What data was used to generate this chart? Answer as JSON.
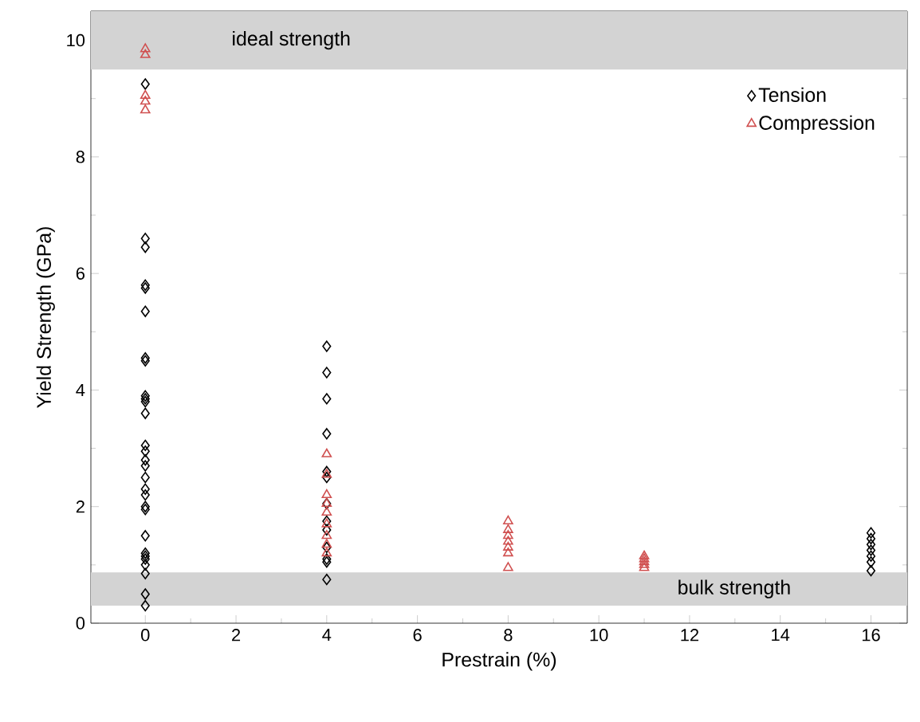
{
  "chart_data": {
    "type": "scatter",
    "xlabel": "Prestrain (%)",
    "ylabel": "Yield Strength (GPa)",
    "xlim": [
      -1.2,
      16.8
    ],
    "ylim": [
      0,
      10.5
    ],
    "xticks": [
      0,
      2,
      4,
      6,
      8,
      10,
      12,
      14,
      16
    ],
    "yticks": [
      0,
      2,
      4,
      6,
      8,
      10
    ],
    "legend": "top right",
    "series": [
      {
        "name": "Tension",
        "color": "#000000",
        "marker": "diamond",
        "x": [
          0,
          0,
          0,
          0,
          0,
          0,
          0,
          0,
          0,
          0,
          0,
          0,
          0,
          0,
          0,
          0,
          0,
          0,
          0,
          0,
          0,
          0,
          0,
          0,
          0,
          0,
          0,
          0,
          0,
          4,
          4,
          4,
          4,
          4,
          4,
          4,
          4,
          4,
          4,
          4,
          4,
          4,
          16,
          16,
          16,
          16,
          16,
          16,
          16
        ],
        "values": [
          9.25,
          6.6,
          6.45,
          5.8,
          5.75,
          5.35,
          4.55,
          4.5,
          3.9,
          3.85,
          3.8,
          3.6,
          3.05,
          2.95,
          2.8,
          2.7,
          2.5,
          2.3,
          2.2,
          2.0,
          1.95,
          1.5,
          1.2,
          1.15,
          1.1,
          1.0,
          0.85,
          0.5,
          0.3,
          4.75,
          4.3,
          3.85,
          3.25,
          2.6,
          2.5,
          2.05,
          1.75,
          1.6,
          1.3,
          1.1,
          1.05,
          0.75,
          1.55,
          1.45,
          1.35,
          1.25,
          1.15,
          1.05,
          0.9
        ]
      },
      {
        "name": "Compression",
        "color": "#d05050",
        "marker": "triangle",
        "x": [
          0,
          0,
          0,
          0,
          0,
          4,
          4,
          4,
          4,
          4,
          4,
          4,
          4,
          4,
          8,
          8,
          8,
          8,
          8,
          8,
          8,
          11,
          11,
          11,
          11,
          11
        ],
        "values": [
          9.85,
          9.75,
          9.05,
          8.95,
          8.8,
          2.9,
          2.55,
          2.2,
          2.05,
          1.9,
          1.7,
          1.5,
          1.35,
          1.2,
          1.75,
          1.6,
          1.5,
          1.4,
          1.3,
          1.2,
          0.95,
          1.15,
          1.1,
          1.05,
          1.0,
          0.95
        ]
      }
    ],
    "bands": [
      {
        "axis": "y",
        "from": 9.5,
        "to": 10.5,
        "label": "ideal strength",
        "color": "#d3d3d3"
      },
      {
        "axis": "y",
        "from": 0.3,
        "to": 0.87,
        "label": "bulk strength",
        "color": "#d3d3d3"
      }
    ]
  }
}
